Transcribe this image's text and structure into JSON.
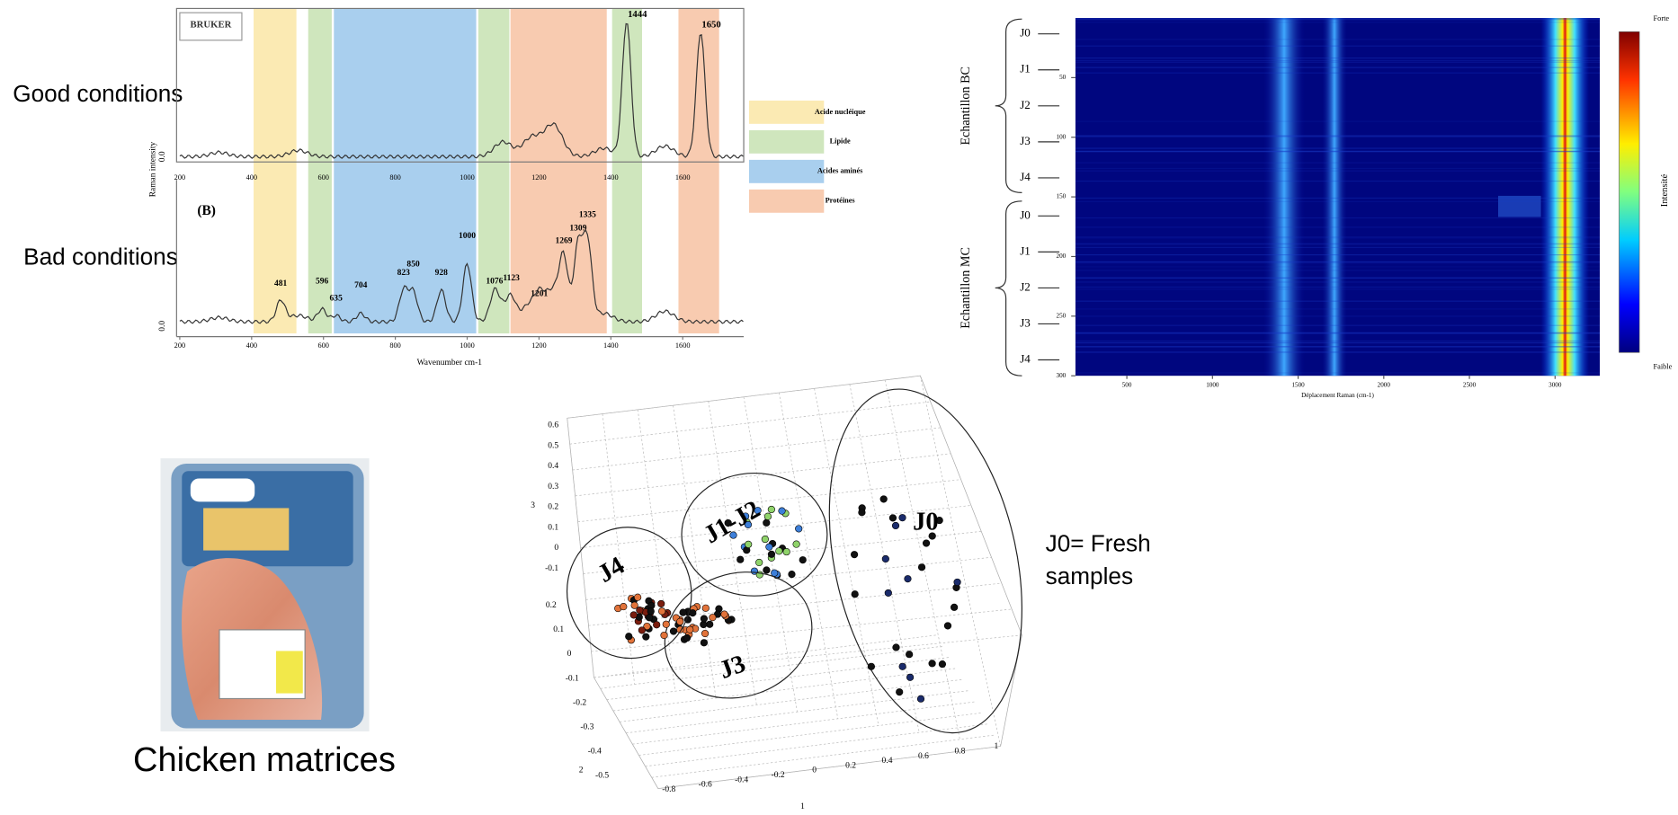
{
  "labels": {
    "good": "Good conditions",
    "bad": "Bad conditions",
    "fresh_1": "J0= Fresh",
    "fresh_2": "samples",
    "chicken": "Chicken matrices"
  },
  "spectra": {
    "brand": "BRUKER",
    "panel": "(B)",
    "y_label": "Raman intensity",
    "x_label": "Wavenumber cm-1",
    "zero": "0.0",
    "x_ticks": [
      200,
      400,
      600,
      800,
      1000,
      1200,
      1400,
      1600
    ],
    "peaks_top": [
      1444,
      1650
    ],
    "peaks_bottom": [
      481,
      596,
      635,
      704,
      823,
      850,
      928,
      1000,
      1076,
      1123,
      1201,
      1269,
      1309,
      1335
    ],
    "legend": [
      "Acide nucléique",
      "Lipide",
      "Acides aminés",
      "Protéines"
    ]
  },
  "heatmap": {
    "groups": [
      "Echantillon BC",
      "Echantillon MC"
    ],
    "rows": [
      "J0",
      "J1",
      "J2",
      "J3",
      "J4"
    ],
    "x_ticks": [
      500,
      1000,
      1500,
      2000,
      2500,
      3000
    ],
    "y_ticks": [
      50,
      100,
      150,
      200,
      250,
      300
    ],
    "x_label": "Déplacement Raman (cm-1)",
    "strong": "Forte",
    "weak": "Faible",
    "scale_label": "Intensité"
  },
  "scatter": {
    "clusters": [
      "J0",
      "J1-J2",
      "J3",
      "J4"
    ],
    "axis_names": [
      "1",
      "2",
      "3"
    ],
    "z_ticks": [
      0.6,
      0.5,
      0.4,
      0.3,
      0.2,
      0.1,
      0,
      -0.1
    ],
    "y_ticks": [
      0.2,
      0.1,
      0,
      -0.1,
      -0.2,
      -0.3,
      -0.4,
      -0.5
    ],
    "x_ticks": [
      -0.8,
      -0.6,
      -0.4,
      -0.2,
      0,
      0.2,
      0.4,
      0.6,
      0.8,
      1
    ]
  }
}
